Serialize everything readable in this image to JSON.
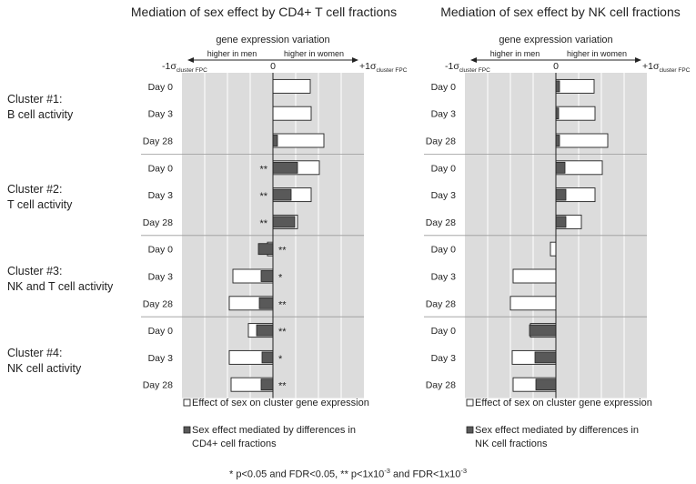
{
  "figure": {
    "cluster_labels": [
      {
        "line1": "Cluster #1:",
        "line2": "B cell activity"
      },
      {
        "line1": "Cluster #2:",
        "line2": "T cell activity"
      },
      {
        "line1": "Cluster #3:",
        "line2": "NK and T cell activity"
      },
      {
        "line1": "Cluster #4:",
        "line2": "NK cell activity"
      }
    ],
    "days": [
      "Day 0",
      "Day 3",
      "Day 28",
      "Day 0",
      "Day 3",
      "Day 28",
      "Day 0",
      "Day 3",
      "Day 28",
      "Day 0",
      "Day 3",
      "Day 28"
    ],
    "axis_top_label": "gene expression variation",
    "arrow_left_label": "higher in men",
    "arrow_right_label": "higher in women",
    "tick_left": "-1σ",
    "tick_zero": "0",
    "tick_right": "+1σ",
    "tick_subscript": "cluster FPC",
    "footnote": {
      "part1": "* p<0.05 and FDR<0.05,  ** p<1x10",
      "exp1": "-3",
      "part2": " and FDR<1x10",
      "exp2": "-3"
    },
    "colors": {
      "panel_bg": "#dcdcdc",
      "mediated_bar": "#595959",
      "total_bar": "#ffffff",
      "grid": "#ffffff"
    }
  },
  "chart_data": [
    {
      "type": "bar",
      "orientation": "horizontal",
      "title": "Mediation of sex effect by CD4+ T cell fractions",
      "xlabel": "gene expression variation",
      "xlim": [
        -1,
        1
      ],
      "categories": [
        "Day 0",
        "Day 3",
        "Day 28",
        "Day 0",
        "Day 3",
        "Day 28",
        "Day 0",
        "Day 3",
        "Day 28",
        "Day 0",
        "Day 3",
        "Day 28"
      ],
      "series": [
        {
          "name": "Effect of sex on cluster gene expression",
          "values": [
            0.41,
            0.42,
            0.56,
            0.51,
            0.42,
            0.27,
            -0.06,
            -0.44,
            -0.48,
            -0.27,
            -0.48,
            -0.46
          ]
        },
        {
          "name": "Sex effect mediated by differences in CD4+ cell fractions",
          "values": [
            0.0,
            0.0,
            0.05,
            0.27,
            0.2,
            0.24,
            -0.16,
            -0.13,
            -0.15,
            -0.18,
            -0.12,
            -0.13
          ]
        }
      ],
      "significance": [
        "",
        "",
        "",
        "**",
        "**",
        "**",
        "**",
        "*",
        "**",
        "**",
        "*",
        "**"
      ],
      "legend": [
        "Effect of sex on cluster gene expression",
        "Sex effect mediated by differences in",
        "CD4+ cell fractions"
      ]
    },
    {
      "type": "bar",
      "orientation": "horizontal",
      "title": "Mediation of sex effect by NK cell fractions",
      "xlabel": "gene expression variation",
      "xlim": [
        -1,
        1
      ],
      "categories": [
        "Day 0",
        "Day 3",
        "Day 28",
        "Day 0",
        "Day 3",
        "Day 28",
        "Day 0",
        "Day 3",
        "Day 28",
        "Day 0",
        "Day 3",
        "Day 28"
      ],
      "series": [
        {
          "name": "Effect of sex on cluster gene expression",
          "values": [
            0.42,
            0.43,
            0.57,
            0.51,
            0.43,
            0.28,
            -0.06,
            -0.47,
            -0.5,
            -0.28,
            -0.48,
            -0.47
          ]
        },
        {
          "name": "Sex effect mediated by differences in NK cell fractions",
          "values": [
            0.04,
            0.03,
            0.04,
            0.1,
            0.11,
            0.11,
            0.0,
            0.0,
            0.0,
            -0.29,
            -0.23,
            -0.22
          ]
        }
      ],
      "significance": [
        "",
        "",
        "",
        "",
        "",
        "",
        "",
        "",
        "",
        "",
        "",
        ""
      ],
      "legend": [
        "Effect of sex on cluster gene expression",
        "Sex effect mediated by differences in",
        "NK cell fractions"
      ]
    }
  ]
}
